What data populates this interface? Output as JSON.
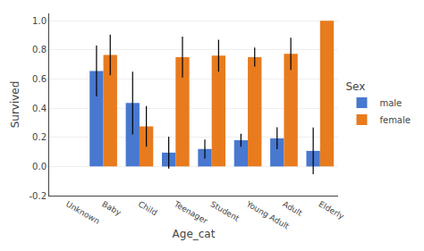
{
  "chart_data": {
    "type": "bar",
    "categories": [
      "Unknown",
      "Baby",
      "Child",
      "Teenager",
      "Student",
      "Young Adult",
      "Adult",
      "Elderly"
    ],
    "series": [
      {
        "name": "male",
        "color": "#4878cf",
        "values": [
          0.0,
          0.655,
          0.435,
          0.095,
          0.12,
          0.18,
          0.193,
          0.107
        ],
        "errors": [
          0.0,
          0.175,
          0.215,
          0.11,
          0.065,
          0.045,
          0.075,
          0.16
        ]
      },
      {
        "name": "female",
        "color": "#e87b1e",
        "values": [
          0.0,
          0.765,
          0.275,
          0.75,
          0.76,
          0.75,
          0.773,
          1.0
        ],
        "errors": [
          0.0,
          0.14,
          0.14,
          0.14,
          0.11,
          0.065,
          0.11,
          0.0
        ]
      }
    ],
    "xlabel": "Age_cat",
    "ylabel": "Survived",
    "legend_title": "Sex",
    "legend": "right",
    "ylim": [
      -0.2,
      1.05
    ],
    "yticks": [
      -0.2,
      {
        "value": 0,
        "label": "0.0"
      },
      0.2,
      0.4,
      0.6,
      0.8,
      {
        "value": 1,
        "label": "1.0"
      }
    ],
    "grid": true
  }
}
